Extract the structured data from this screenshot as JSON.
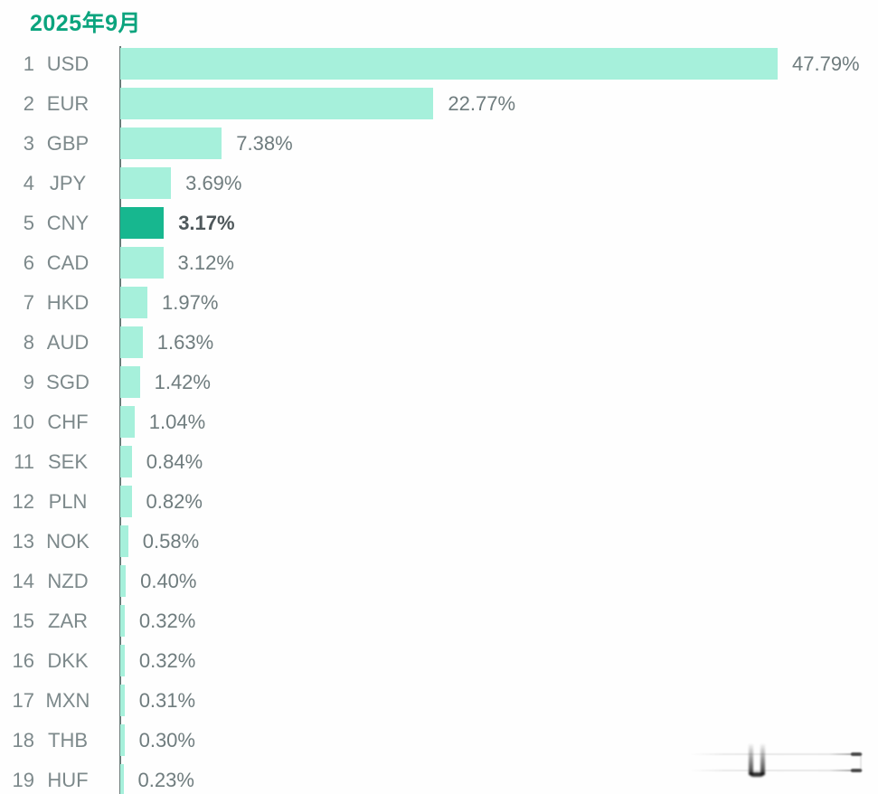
{
  "page": {
    "title": "2025年9月"
  },
  "colors": {
    "title": "#0ba47e",
    "bar": "#a6f0db",
    "bar_highlight": "#17b78f",
    "axis_line": "#697a77",
    "row_label": "#7d898b",
    "value_label": "#6f7c7e",
    "value_label_highlight": "#4f585b"
  },
  "chart_data": {
    "type": "bar",
    "orientation": "horizontal",
    "title": "2025年9月",
    "xlabel": "",
    "ylabel": "",
    "unit": "%",
    "grid": false,
    "legend_position": "none",
    "xlim": [
      0,
      50
    ],
    "ranks": [
      1,
      2,
      3,
      4,
      5,
      6,
      7,
      8,
      9,
      10,
      11,
      12,
      13,
      14,
      15,
      16,
      17,
      18,
      19
    ],
    "categories": [
      "USD",
      "EUR",
      "GBP",
      "JPY",
      "CNY",
      "CAD",
      "HKD",
      "AUD",
      "SGD",
      "CHF",
      "SEK",
      "PLN",
      "NOK",
      "NZD",
      "ZAR",
      "DKK",
      "MXN",
      "THB",
      "HUF"
    ],
    "values": [
      47.79,
      22.77,
      7.38,
      3.69,
      3.17,
      3.12,
      1.97,
      1.63,
      1.42,
      1.04,
      0.84,
      0.82,
      0.58,
      0.4,
      0.32,
      0.32,
      0.31,
      0.3,
      0.23
    ],
    "value_labels": [
      "47.79%",
      "22.77%",
      "7.38%",
      "3.69%",
      "3.17%",
      "3.12%",
      "1.97%",
      "1.63%",
      "1.42%",
      "1.04%",
      "0.84%",
      "0.82%",
      "0.58%",
      "0.40%",
      "0.32%",
      "0.32%",
      "0.31%",
      "0.30%",
      "0.23%"
    ],
    "highlight_category": "CNY"
  },
  "watermark": {
    "present": true
  }
}
